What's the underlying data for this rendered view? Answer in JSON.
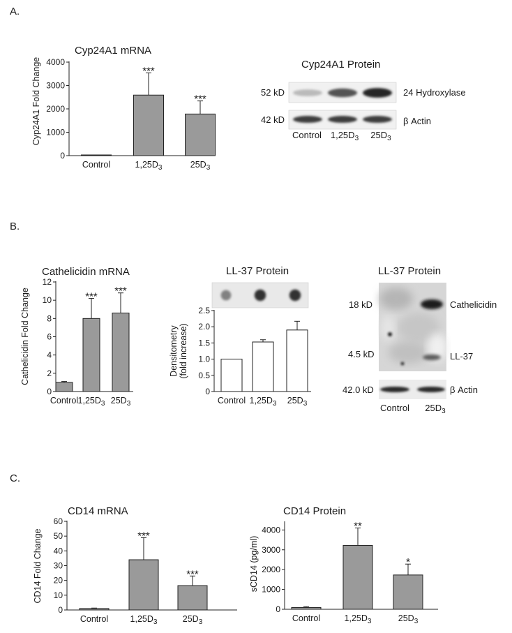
{
  "panels": {
    "a": "A.",
    "b": "B.",
    "c": "C."
  },
  "chart_data": [
    {
      "id": "cyp_mrna",
      "type": "bar",
      "title": "Cyp24A1 mRNA",
      "ylabel": "Cyp24A1 Fold Change",
      "ylim": [
        0,
        4000
      ],
      "yticks": [
        0,
        1000,
        2000,
        3000,
        4000
      ],
      "categories": [
        "Control",
        "1,25D3",
        "25D3"
      ],
      "values": [
        5,
        2590,
        1780
      ],
      "errors": [
        5,
        950,
        560
      ],
      "significance": [
        "",
        "***",
        "***"
      ],
      "bar_color": "#9a9a9a"
    },
    {
      "id": "cath_mrna",
      "type": "bar",
      "title": "Cathelicidin mRNA",
      "ylabel": "Cathelicidin Fold Change",
      "ylim": [
        0,
        12
      ],
      "yticks": [
        0,
        2,
        4,
        6,
        8,
        10,
        12
      ],
      "categories": [
        "Control",
        "1,25D3",
        "25D3"
      ],
      "values": [
        1.0,
        8.0,
        8.6
      ],
      "errors": [
        0.1,
        2.2,
        2.2
      ],
      "significance": [
        "",
        "***",
        "***"
      ],
      "bar_color": "#9a9a9a"
    },
    {
      "id": "ll37_dens",
      "type": "bar",
      "title": "LL-37 Protein",
      "ylabel": "Densitometry (fold increase)",
      "ylabel_lines": [
        "Densitometry",
        "(fold increase)"
      ],
      "ylim": [
        0,
        2.5
      ],
      "yticks": [
        0,
        0.5,
        1.0,
        1.5,
        2.0,
        2.5
      ],
      "ytick_labels": [
        "0",
        "0.5",
        "1.0",
        "1.5",
        "2.0",
        "2.5"
      ],
      "categories": [
        "Control",
        "1,25D3",
        "25D3"
      ],
      "values": [
        1.0,
        1.53,
        1.9
      ],
      "errors": [
        0,
        0.07,
        0.27
      ],
      "significance": [
        "",
        "",
        ""
      ],
      "bar_color": "#ffffff"
    },
    {
      "id": "cd14_mrna",
      "type": "bar",
      "title": "CD14 mRNA",
      "ylabel": "CD14 Fold Change",
      "ylim": [
        0,
        60
      ],
      "yticks": [
        0,
        10,
        20,
        30,
        40,
        50,
        60
      ],
      "categories": [
        "Control",
        "1,25D3",
        "25D3"
      ],
      "values": [
        1.0,
        34,
        16.5
      ],
      "errors": [
        0.3,
        15,
        6.5
      ],
      "significance": [
        "",
        "***",
        "***"
      ],
      "bar_color": "#9a9a9a"
    },
    {
      "id": "cd14_prot",
      "type": "bar",
      "title": "CD14 Protein",
      "ylabel": "sCD14 (pg/ml)",
      "ylim": [
        0,
        4400
      ],
      "yticks": [
        0,
        1000,
        2000,
        3000,
        4000
      ],
      "categories": [
        "Control",
        "1,25D3",
        "25D3"
      ],
      "values": [
        90,
        3220,
        1730
      ],
      "errors": [
        40,
        880,
        550
      ],
      "significance": [
        "",
        "**",
        "*"
      ],
      "bar_color": "#9a9a9a"
    }
  ],
  "blots": {
    "cyp_protein": {
      "title": "Cyp24A1 Protein",
      "rows": [
        {
          "size": "52 kD",
          "label": "24 Hydroxylase",
          "band_intensity": [
            0.3,
            0.75,
            0.95
          ]
        },
        {
          "size": "42 kD",
          "label": "β Actin",
          "band_intensity": [
            0.85,
            0.85,
            0.85
          ]
        }
      ],
      "lanes": [
        "Control",
        "1,25D3",
        "25D3"
      ]
    },
    "ll37_dot": {
      "dot_intensity": [
        0.55,
        0.9,
        0.9
      ]
    },
    "ll37_western": {
      "title": "LL-37 Protein",
      "sizes": [
        "18 kD",
        "4.5 kD",
        "42.0 kD"
      ],
      "labels": [
        "Cathelicidin",
        "LL-37",
        "β Actin"
      ],
      "lanes": [
        "Control",
        "25D3"
      ]
    }
  }
}
